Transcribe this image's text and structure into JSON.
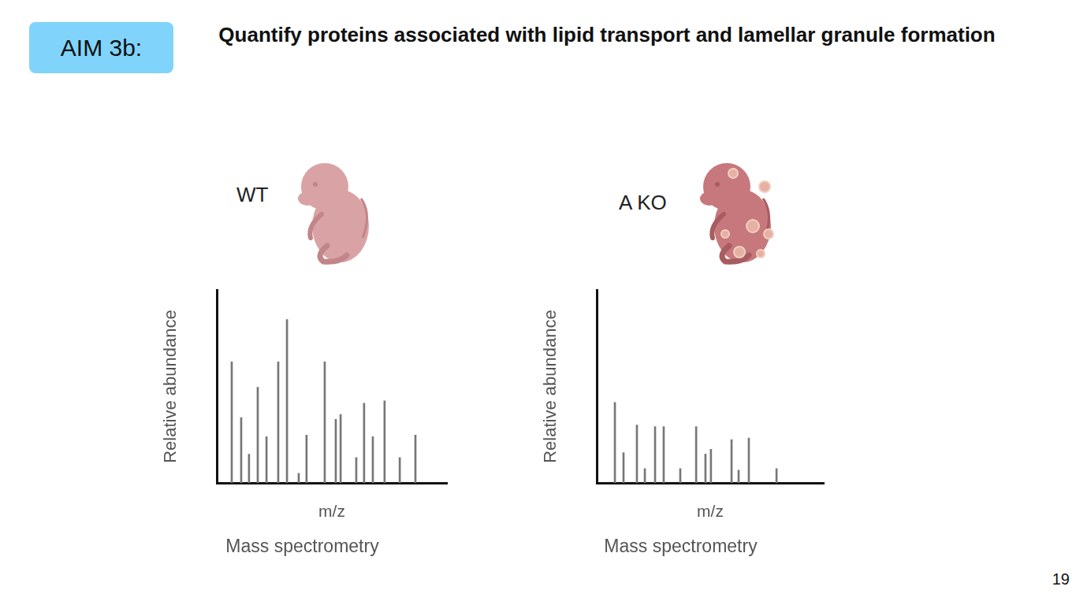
{
  "header": {
    "badge": "AIM 3b:",
    "title": "Quantify proteins associated with lipid transport and lamellar granule formation"
  },
  "page_number": 19,
  "chart_data": [
    {
      "type": "bar",
      "title": "WT",
      "subtitle": "Mass spectrometry",
      "x_label": "m/z",
      "y_label": "Relative abundance",
      "x": [
        6.5,
        10.6,
        14,
        17.8,
        21.6,
        26.7,
        30.5,
        35.6,
        39,
        46.9,
        51.7,
        53.8,
        60.6,
        64,
        67.8,
        72.9,
        79.5,
        86.3
      ],
      "values": [
        62.8,
        33.9,
        14.9,
        49.6,
        24,
        62.8,
        84.7,
        5,
        24.8,
        62.8,
        33,
        35.5,
        13.2,
        41.3,
        24,
        42.6,
        13.2,
        24.8
      ],
      "color": "#777777",
      "xlim": [
        0,
        100
      ],
      "ylim": [
        0,
        100
      ],
      "grid": false,
      "tick_labels": false
    },
    {
      "type": "bar",
      "title": "A KO",
      "subtitle": "Mass spectrometry",
      "x_label": "m/z",
      "y_label": "Relative abundance",
      "x": [
        8,
        11.8,
        17.7,
        21.2,
        25.7,
        29.5,
        36.8,
        43.8,
        47.9,
        50.3,
        59.4,
        62.5,
        67,
        79.2
      ],
      "values": [
        41.7,
        15.8,
        30,
        7.5,
        29.2,
        29.2,
        7.5,
        29.2,
        15,
        17.5,
        22.5,
        6.7,
        23.3,
        7.5
      ],
      "color": "#777777",
      "xlim": [
        0,
        100
      ],
      "ylim": [
        0,
        100
      ],
      "grid": false,
      "tick_labels": false
    }
  ]
}
